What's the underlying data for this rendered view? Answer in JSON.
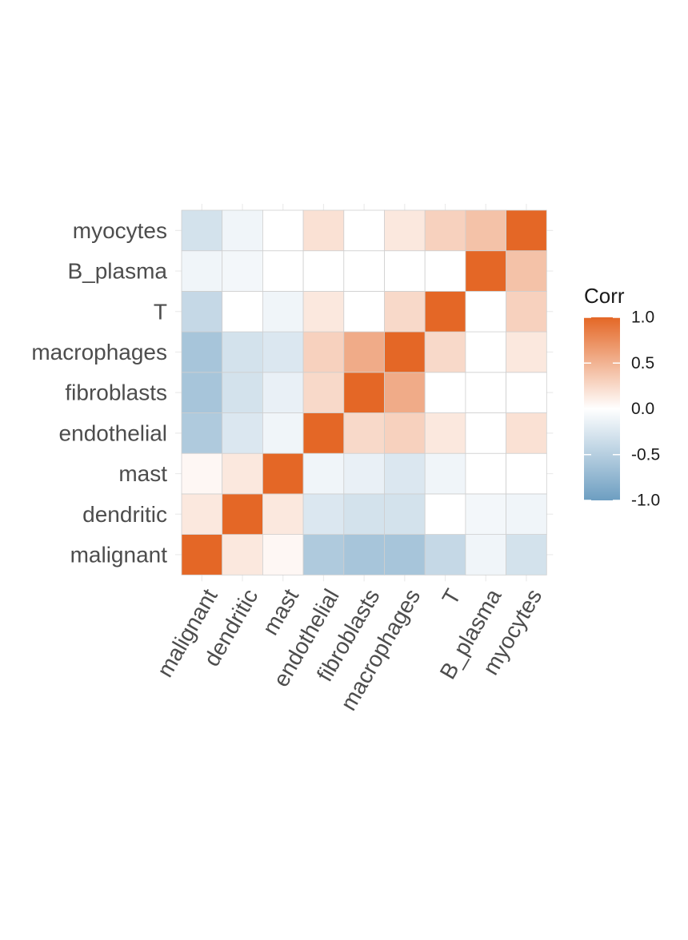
{
  "chart_data": {
    "type": "heatmap",
    "legend_title": "Corr",
    "legend_ticks": [
      "1.0",
      "0.5",
      "0.0",
      "-0.5",
      "-1.0"
    ],
    "legend_tick_values": [
      1.0,
      0.5,
      0.0,
      -0.5,
      -1.0
    ],
    "legend_position": "right",
    "color_scale": {
      "low": "#6D9EC1",
      "mid": "#FFFFFF",
      "high": "#E46726",
      "limits": [
        -1,
        1
      ]
    },
    "categories": [
      "malignant",
      "dendritic",
      "mast",
      "endothelial",
      "fibroblasts",
      "macrophages",
      "T",
      "B_plasma",
      "myocytes"
    ],
    "matrix": [
      [
        1.0,
        0.15,
        0.05,
        -0.55,
        -0.6,
        -0.6,
        -0.4,
        -0.1,
        -0.3
      ],
      [
        0.15,
        1.0,
        0.15,
        -0.25,
        -0.3,
        -0.3,
        0.0,
        -0.08,
        -0.1
      ],
      [
        0.05,
        0.15,
        1.0,
        -0.1,
        -0.15,
        -0.25,
        -0.1,
        0.0,
        0.0
      ],
      [
        -0.55,
        -0.25,
        -0.1,
        1.0,
        0.25,
        0.3,
        0.15,
        0.0,
        0.2
      ],
      [
        -0.6,
        -0.3,
        -0.15,
        0.25,
        1.0,
        0.55,
        0.0,
        0.0,
        0.0
      ],
      [
        -0.6,
        -0.3,
        -0.25,
        0.3,
        0.55,
        1.0,
        0.25,
        0.0,
        0.15
      ],
      [
        -0.4,
        0.0,
        -0.1,
        0.15,
        0.0,
        0.25,
        1.0,
        0.0,
        0.3
      ],
      [
        -0.1,
        -0.08,
        0.0,
        0.0,
        0.0,
        0.0,
        0.0,
        1.0,
        0.4
      ],
      [
        -0.3,
        -0.1,
        0.0,
        0.2,
        0.0,
        0.15,
        0.3,
        0.4,
        1.0
      ]
    ],
    "grid": true
  }
}
